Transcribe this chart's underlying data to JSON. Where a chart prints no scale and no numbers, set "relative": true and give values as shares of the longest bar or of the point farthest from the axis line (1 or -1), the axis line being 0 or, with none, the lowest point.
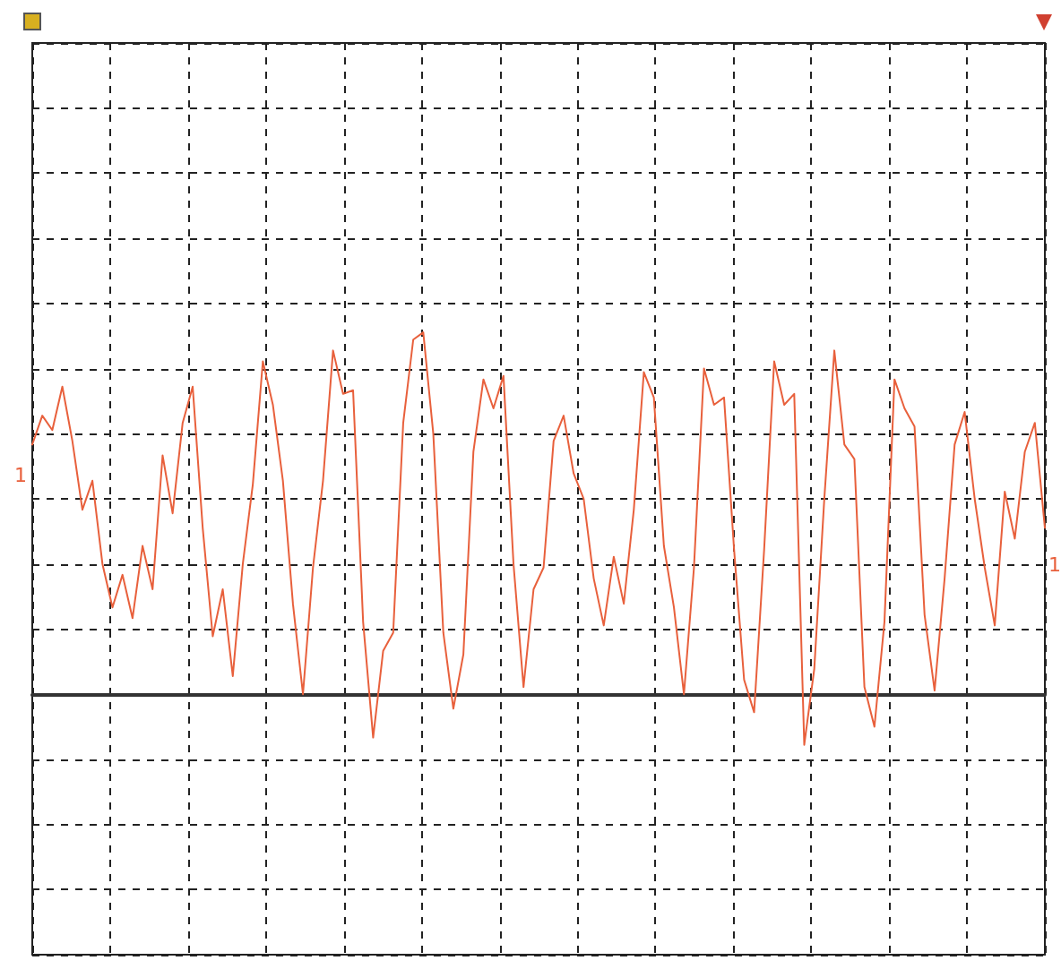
{
  "chart_data": {
    "type": "line",
    "relative": true,
    "grid": true,
    "line_style": "solid",
    "annotations": [
      "1",
      "1"
    ],
    "categories": [
      null,
      null,
      null,
      null,
      null,
      null,
      null,
      null,
      null,
      null,
      null,
      null,
      null,
      null,
      null,
      null,
      null,
      null,
      null,
      null,
      null,
      null,
      null,
      null,
      null,
      null,
      null,
      null,
      null,
      null,
      null,
      null,
      null,
      null,
      null,
      null,
      null,
      null,
      null,
      null,
      null,
      null,
      null,
      null,
      null,
      null,
      null,
      null,
      null,
      null,
      null,
      null,
      null,
      null,
      null,
      null,
      null,
      null,
      null,
      null,
      null,
      null,
      null,
      null,
      null,
      null,
      null,
      null,
      null,
      null,
      null,
      null,
      null,
      null,
      null,
      null,
      null,
      null,
      null,
      null,
      null,
      null,
      null,
      null,
      null,
      null,
      null,
      null,
      null,
      null,
      null,
      null,
      null,
      null,
      null,
      null,
      null,
      null,
      null,
      null,
      null,
      null
    ],
    "series": [
      {
        "color": "#e8603c",
        "values": [
          0.69,
          0.77,
          0.73,
          0.85,
          0.7,
          0.51,
          0.59,
          0.36,
          0.24,
          0.33,
          0.21,
          0.41,
          0.29,
          0.66,
          0.5,
          0.75,
          0.85,
          0.46,
          0.16,
          0.29,
          0.05,
          0.36,
          0.58,
          0.92,
          0.8,
          0.59,
          0.25,
          0.0,
          0.35,
          0.59,
          0.95,
          0.83,
          0.84,
          0.2,
          -0.12,
          0.12,
          0.17,
          0.75,
          0.98,
          1.0,
          0.72,
          0.17,
          -0.04,
          0.11,
          0.67,
          0.87,
          0.79,
          0.88,
          0.36,
          0.02,
          0.29,
          0.35,
          0.7,
          0.77,
          0.61,
          0.54,
          0.32,
          0.19,
          0.38,
          0.25,
          0.51,
          0.89,
          0.82,
          0.41,
          0.24,
          0.0,
          0.35,
          0.9,
          0.8,
          0.82,
          0.4,
          0.04,
          -0.05,
          0.4,
          0.92,
          0.8,
          0.83,
          -0.14,
          0.07,
          0.54,
          0.95,
          0.69,
          0.65,
          0.02,
          -0.09,
          0.2,
          0.87,
          0.79,
          0.74,
          0.22,
          0.01,
          0.32,
          0.69,
          0.78,
          0.54,
          0.35,
          0.19,
          0.56,
          0.43,
          0.67,
          0.75,
          0.46
        ]
      }
    ]
  }
}
